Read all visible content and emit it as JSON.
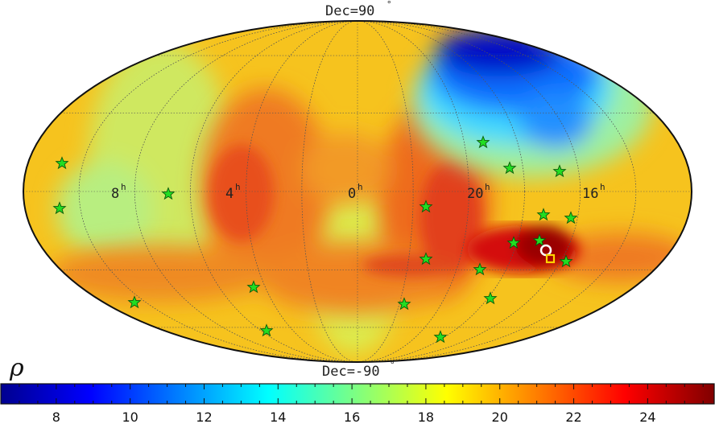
{
  "map": {
    "projection": "Mollweide all-sky",
    "top_label": "Dec=90",
    "bottom_label": "Dec=-90",
    "degree_symbol": "°",
    "ra_labels": [
      {
        "text": "8",
        "sup": "h"
      },
      {
        "text": "4",
        "sup": "h"
      },
      {
        "text": "0",
        "sup": "h"
      },
      {
        "text": "20",
        "sup": "h"
      },
      {
        "text": "16",
        "sup": "h"
      }
    ],
    "source_markers": [
      "white-circle",
      "yellow-square"
    ],
    "star_color": "#22dd22"
  },
  "colorbar": {
    "symbol": "ρ",
    "min": 6.5,
    "max": 25.8,
    "tick_labels": [
      "8",
      "10",
      "12",
      "14",
      "16",
      "18",
      "20",
      "22",
      "24"
    ],
    "tick_values": [
      8,
      10,
      12,
      14,
      16,
      18,
      20,
      22,
      24
    ],
    "colormap": "jet"
  }
}
